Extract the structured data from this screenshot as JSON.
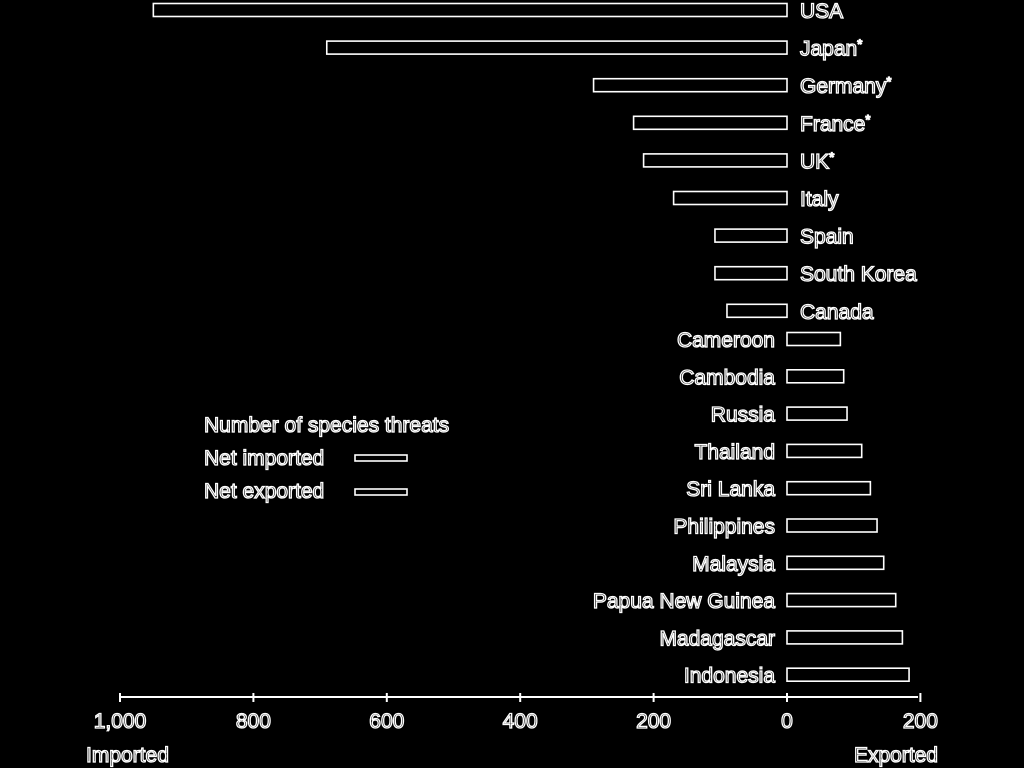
{
  "chart_data": {
    "type": "bar",
    "orientation": "horizontal",
    "xlim": [
      -1000,
      200
    ],
    "x_ticks": [
      {
        "value": -1000,
        "label": "1,000"
      },
      {
        "value": -800,
        "label": "800"
      },
      {
        "value": -600,
        "label": "600"
      },
      {
        "value": -400,
        "label": "400"
      },
      {
        "value": -200,
        "label": "200"
      },
      {
        "value": 0,
        "label": "0"
      },
      {
        "value": 200,
        "label": "200"
      }
    ],
    "axis_label_left": "Imported",
    "axis_label_right": "Exported",
    "series": [
      {
        "legend_label": "Net imported",
        "categories": [
          "USA",
          "Japan",
          "Germany",
          "France",
          "UK",
          "Italy",
          "Spain",
          "South Korea",
          "Canada"
        ],
        "markers": [
          "",
          "*",
          "*",
          "*",
          "*",
          "",
          "",
          "",
          ""
        ],
        "values": [
          -950,
          -690,
          -290,
          -230,
          -215,
          -170,
          -108,
          -108,
          -90
        ]
      },
      {
        "legend_label": "Net exported",
        "categories": [
          "Cameroon",
          "Cambodia",
          "Russia",
          "Thailand",
          "Sri Lanka",
          "Philippines",
          "Malaysia",
          "Papua New Guinea",
          "Madagascar",
          "Indonesia"
        ],
        "values": [
          80,
          85,
          90,
          112,
          125,
          135,
          145,
          163,
          173,
          183
        ]
      }
    ],
    "legend": {
      "title": "Number of species threats",
      "placement": "center-left"
    },
    "grid": false,
    "colors": {
      "background": "#000000",
      "foreground": "#ffffff"
    }
  }
}
